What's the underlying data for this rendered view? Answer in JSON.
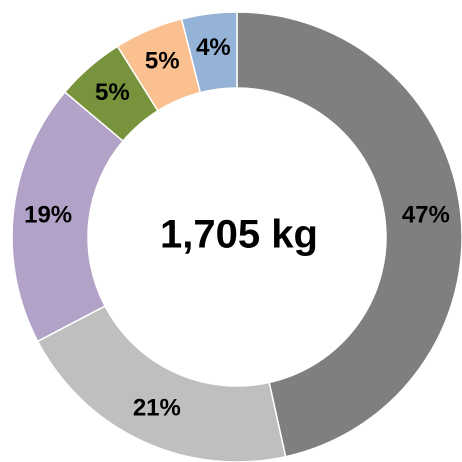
{
  "chart_data": {
    "type": "donut",
    "center_label": "1,705 kg",
    "values": [
      47,
      21,
      19,
      5,
      5,
      4
    ],
    "value_labels": [
      "47%",
      "21%",
      "19%",
      "5%",
      "5%",
      "4%"
    ],
    "colors": [
      "#7f7f7f",
      "#bfbfbf",
      "#b3a2c7",
      "#77933c",
      "#fac090",
      "#95b3d7"
    ]
  }
}
